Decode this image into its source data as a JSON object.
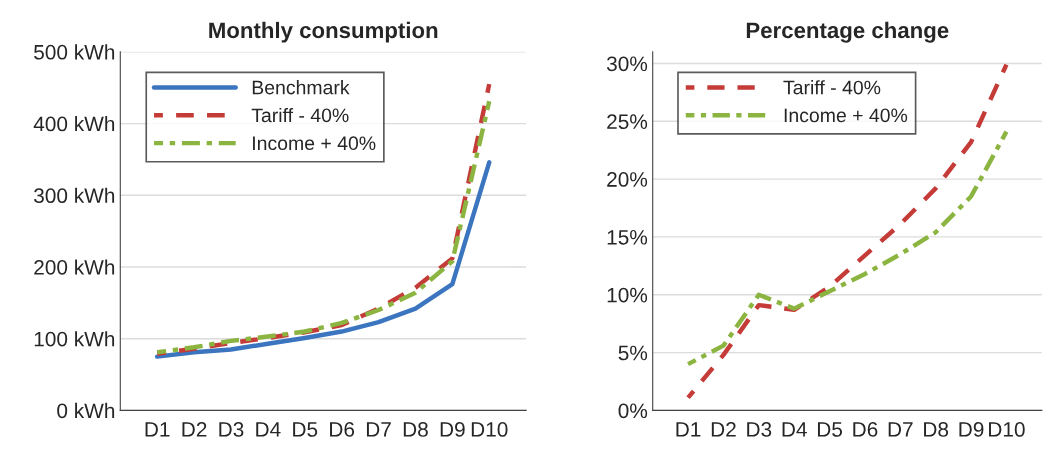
{
  "chart_data": [
    {
      "type": "line",
      "title": "Monthly consumption",
      "categories": [
        "D1",
        "D2",
        "D3",
        "D4",
        "D5",
        "D6",
        "D7",
        "D8",
        "D9",
        "D10"
      ],
      "series": [
        {
          "name": "Benchmark",
          "color": "#3b75bf",
          "line_style": "solid",
          "values": [
            75,
            81,
            85,
            93,
            101,
            110,
            123,
            142,
            176,
            346
          ]
        },
        {
          "name": "Tariff - 40%",
          "color": "#c43b38",
          "line_style": "dashed",
          "values": [
            79,
            86,
            94,
            101,
            109,
            119,
            142,
            171,
            212,
            455
          ]
        },
        {
          "name": "Income + 40%",
          "color": "#8bb540",
          "line_style": "dashdot",
          "values": [
            81,
            88,
            97,
            103,
            110,
            122,
            140,
            164,
            208,
            431
          ]
        }
      ],
      "ylim": [
        0,
        500
      ],
      "yticks": [
        {
          "value": 0,
          "label": "0 kWh"
        },
        {
          "value": 100,
          "label": "100 kWh"
        },
        {
          "value": 200,
          "label": "200 kWh"
        },
        {
          "value": 300,
          "label": "300 kWh"
        },
        {
          "value": 400,
          "label": "400 kWh"
        },
        {
          "value": 500,
          "label": "500 kWh"
        }
      ],
      "grid": "y",
      "legend": "top left"
    },
    {
      "type": "line",
      "title": "Percentage change",
      "categories": [
        "D1",
        "D2",
        "D3",
        "D4",
        "D5",
        "D6",
        "D7",
        "D8",
        "D9",
        "D10"
      ],
      "series": [
        {
          "name": "Tariff - 40%",
          "color": "#c43b38",
          "line_style": "dashed",
          "values": [
            1.1,
            4.8,
            9.1,
            8.7,
            10.7,
            13.4,
            16.1,
            19.2,
            23.2,
            29.9
          ]
        },
        {
          "name": "Income + 40%",
          "color": "#8bb540",
          "line_style": "dashdot",
          "values": [
            4.0,
            5.6,
            10.0,
            8.8,
            10.3,
            11.8,
            13.5,
            15.4,
            18.5,
            24.1
          ]
        }
      ],
      "ylim": [
        0,
        31
      ],
      "yticks": [
        {
          "value": 0,
          "label": "0%"
        },
        {
          "value": 5,
          "label": "5%"
        },
        {
          "value": 10,
          "label": "10%"
        },
        {
          "value": 15,
          "label": "15%"
        },
        {
          "value": 20,
          "label": "20%"
        },
        {
          "value": 25,
          "label": "25%"
        },
        {
          "value": 30,
          "label": "30%"
        }
      ],
      "grid": "y",
      "legend": "top left"
    }
  ]
}
